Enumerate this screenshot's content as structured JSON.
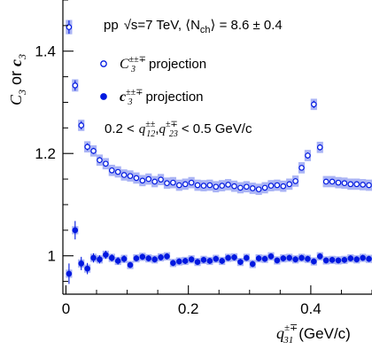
{
  "chart_data": {
    "type": "scatter",
    "title_lines": [
      "pp √s=7 TeV, ⟨N_ch⟩ = 8.6 ± 0.4",
      "0.2 < q12±±, q23±∓ < 0.5 GeV/c"
    ],
    "annotation_header": "pp",
    "annotation_energy": "√s=7 TeV, ⟨N",
    "annotation_nch_sub": "ch",
    "annotation_mult": "⟩ = 8.6 ± 0.4",
    "cut_text_left": "0.2 <",
    "cut_text_right": "< 0.5 GeV/c",
    "cut_q12": "q",
    "cut_q12_sub": "12",
    "cut_q12_sup": "±±",
    "cut_q23_sub": "23",
    "cut_q23_sup": "±∓",
    "xlabel": "q",
    "xlabel_sub": "31",
    "xlabel_sup": "±∓",
    "xlabel_unit": "(GeV/c)",
    "ylabel_C": "C",
    "ylabel_c": "c",
    "ylabel_sub": "3",
    "ylabel_or": "or",
    "xlim": [
      -0.005,
      0.5
    ],
    "ylim": [
      0.925,
      1.5
    ],
    "x_ticks": [
      0.0,
      0.2,
      0.4
    ],
    "x_tick_labels": [
      "0",
      "0.2",
      "0.4"
    ],
    "y_ticks": [
      1.0,
      1.2,
      1.4
    ],
    "y_tick_labels": [
      "1",
      "1.2",
      "1.4"
    ],
    "legend_position": "upper-left",
    "colors": {
      "marker": "#0018e0",
      "band": "#aab4f5",
      "axis": "#000000"
    },
    "series": [
      {
        "name": "C3±±∓ projection",
        "legend_label": "projection",
        "legend_sym": "C",
        "legend_sub": "3",
        "legend_sup": "±±∓",
        "marker": "open-circle",
        "x": [
          0.005,
          0.015,
          0.025,
          0.035,
          0.045,
          0.055,
          0.065,
          0.075,
          0.085,
          0.095,
          0.105,
          0.115,
          0.125,
          0.135,
          0.145,
          0.155,
          0.165,
          0.175,
          0.185,
          0.195,
          0.205,
          0.215,
          0.225,
          0.235,
          0.245,
          0.255,
          0.265,
          0.275,
          0.285,
          0.295,
          0.305,
          0.315,
          0.325,
          0.335,
          0.345,
          0.355,
          0.365,
          0.375,
          0.385,
          0.395,
          0.405,
          0.415,
          0.425,
          0.435,
          0.445,
          0.455,
          0.465,
          0.475,
          0.485,
          0.495
        ],
        "y": [
          1.447,
          1.333,
          1.255,
          1.213,
          1.205,
          1.187,
          1.18,
          1.167,
          1.164,
          1.158,
          1.156,
          1.152,
          1.147,
          1.15,
          1.145,
          1.149,
          1.142,
          1.143,
          1.138,
          1.14,
          1.143,
          1.138,
          1.137,
          1.138,
          1.135,
          1.137,
          1.139,
          1.136,
          1.133,
          1.135,
          1.132,
          1.13,
          1.133,
          1.137,
          1.138,
          1.136,
          1.14,
          1.146,
          1.172,
          1.196,
          1.296,
          1.212,
          1.145,
          1.145,
          1.143,
          1.142,
          1.14,
          1.14,
          1.139,
          1.138
        ],
        "yerr": [
          0.013,
          0.01,
          0.008,
          0.007,
          0.006,
          0.006,
          0.005,
          0.005,
          0.005,
          0.005,
          0.005,
          0.004,
          0.004,
          0.004,
          0.004,
          0.004,
          0.004,
          0.004,
          0.004,
          0.004,
          0.004,
          0.004,
          0.004,
          0.004,
          0.004,
          0.004,
          0.004,
          0.004,
          0.004,
          0.004,
          0.004,
          0.004,
          0.004,
          0.004,
          0.004,
          0.004,
          0.004,
          0.004,
          0.005,
          0.006,
          0.007,
          0.006,
          0.005,
          0.005,
          0.005,
          0.005,
          0.005,
          0.005,
          0.005,
          0.005
        ],
        "syst": [
          0.014,
          0.012,
          0.011,
          0.011,
          0.011,
          0.011,
          0.011,
          0.011,
          0.011,
          0.011,
          0.011,
          0.011,
          0.011,
          0.011,
          0.011,
          0.011,
          0.011,
          0.011,
          0.011,
          0.011,
          0.011,
          0.011,
          0.011,
          0.011,
          0.011,
          0.011,
          0.011,
          0.011,
          0.011,
          0.011,
          0.011,
          0.011,
          0.011,
          0.011,
          0.011,
          0.011,
          0.011,
          0.011,
          0.011,
          0.011,
          0.011,
          0.011,
          0.011,
          0.011,
          0.011,
          0.011,
          0.011,
          0.011,
          0.011,
          0.011
        ]
      },
      {
        "name": "c3±±∓ projection",
        "legend_label": "projection",
        "legend_sym": "c",
        "legend_sub": "3",
        "legend_sup": "±±∓",
        "marker": "filled-circle",
        "x": [
          0.005,
          0.015,
          0.025,
          0.035,
          0.045,
          0.055,
          0.065,
          0.075,
          0.085,
          0.095,
          0.105,
          0.115,
          0.125,
          0.135,
          0.145,
          0.155,
          0.165,
          0.175,
          0.185,
          0.195,
          0.205,
          0.215,
          0.225,
          0.235,
          0.245,
          0.255,
          0.265,
          0.275,
          0.285,
          0.295,
          0.305,
          0.315,
          0.325,
          0.335,
          0.345,
          0.355,
          0.365,
          0.375,
          0.385,
          0.395,
          0.405,
          0.415,
          0.425,
          0.435,
          0.445,
          0.455,
          0.465,
          0.475,
          0.485,
          0.495
        ],
        "y": [
          0.965,
          1.05,
          0.985,
          0.975,
          0.996,
          0.993,
          1.002,
          0.996,
          0.99,
          0.994,
          0.982,
          0.995,
          0.998,
          0.995,
          0.993,
          0.997,
          0.999,
          0.986,
          0.989,
          0.99,
          0.993,
          0.988,
          0.992,
          0.99,
          0.994,
          0.99,
          0.996,
          0.997,
          0.988,
          0.996,
          0.984,
          0.995,
          0.994,
          0.999,
          0.991,
          0.995,
          0.996,
          0.993,
          0.996,
          0.994,
          0.989,
          0.999,
          0.991,
          0.992,
          0.991,
          0.992,
          0.995,
          0.993,
          0.996,
          0.994
        ],
        "yerr": [
          0.02,
          0.018,
          0.013,
          0.011,
          0.009,
          0.008,
          0.008,
          0.007,
          0.007,
          0.007,
          0.006,
          0.006,
          0.006,
          0.006,
          0.006,
          0.006,
          0.006,
          0.006,
          0.006,
          0.006,
          0.006,
          0.006,
          0.006,
          0.006,
          0.006,
          0.006,
          0.006,
          0.006,
          0.006,
          0.006,
          0.006,
          0.006,
          0.006,
          0.006,
          0.006,
          0.006,
          0.006,
          0.006,
          0.006,
          0.006,
          0.006,
          0.006,
          0.006,
          0.006,
          0.006,
          0.006,
          0.006,
          0.006,
          0.006,
          0.006
        ],
        "syst": [
          0.008,
          0.008,
          0.008,
          0.008,
          0.008,
          0.008,
          0.008,
          0.008,
          0.008,
          0.008,
          0.008,
          0.008,
          0.008,
          0.008,
          0.008,
          0.008,
          0.008,
          0.008,
          0.008,
          0.008,
          0.008,
          0.008,
          0.008,
          0.008,
          0.008,
          0.008,
          0.008,
          0.008,
          0.008,
          0.008,
          0.008,
          0.008,
          0.008,
          0.008,
          0.008,
          0.008,
          0.008,
          0.008,
          0.008,
          0.008,
          0.008,
          0.008,
          0.008,
          0.008,
          0.008,
          0.008,
          0.008,
          0.008,
          0.008,
          0.008
        ]
      }
    ]
  }
}
